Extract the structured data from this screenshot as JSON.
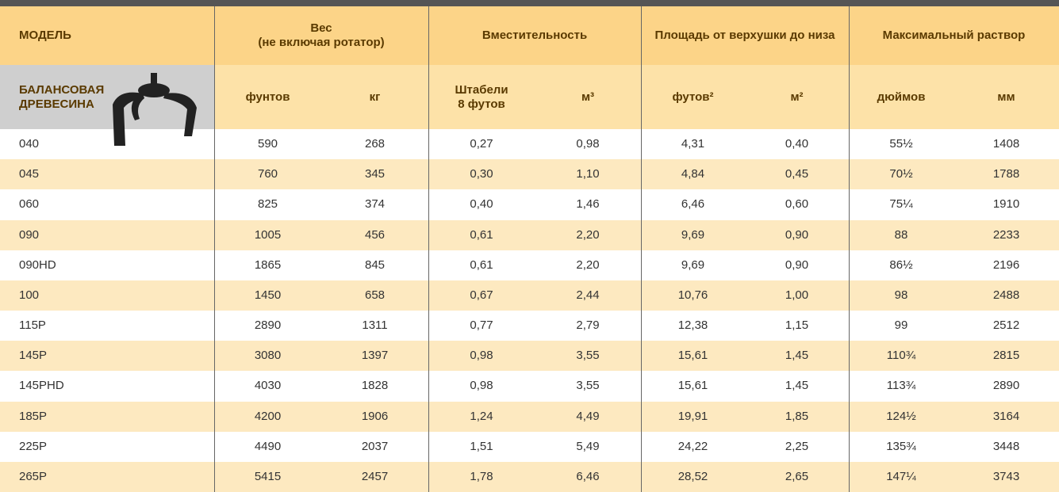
{
  "table": {
    "header": [
      "МОДЕЛЬ",
      "Вес\n(не включая ротатор)",
      "Вместительность",
      "Площадь от верхушки до низа",
      "Максимальный раствор"
    ],
    "subheader": [
      "БАЛАНСОВАЯ\nДРЕВЕСИНА",
      "фунтов",
      "кг",
      "Штабели\n8 футов",
      "м³",
      "футов²",
      "м²",
      "дюймов",
      "мм"
    ],
    "rows": [
      [
        "040",
        "590",
        "268",
        "0,27",
        "0,98",
        "4,31",
        "0,40",
        "55½",
        "1408"
      ],
      [
        "045",
        "760",
        "345",
        "0,30",
        "1,10",
        "4,84",
        "0,45",
        "70½",
        "1788"
      ],
      [
        "060",
        "825",
        "374",
        "0,40",
        "1,46",
        "6,46",
        "0,60",
        "75¼",
        "1910"
      ],
      [
        "090",
        "1005",
        "456",
        "0,61",
        "2,20",
        "9,69",
        "0,90",
        "88",
        "2233"
      ],
      [
        "090HD",
        "1865",
        "845",
        "0,61",
        "2,20",
        "9,69",
        "0,90",
        "86½",
        "2196"
      ],
      [
        "100",
        "1450",
        "658",
        "0,67",
        "2,44",
        "10,76",
        "1,00",
        "98",
        "2488"
      ],
      [
        "115P",
        "2890",
        "1311",
        "0,77",
        "2,79",
        "12,38",
        "1,15",
        "99",
        "2512"
      ],
      [
        "145P",
        "3080",
        "1397",
        "0,98",
        "3,55",
        "15,61",
        "1,45",
        "110¾",
        "2815"
      ],
      [
        "145PHD",
        "4030",
        "1828",
        "0,98",
        "3,55",
        "15,61",
        "1,45",
        "113¾",
        "2890"
      ],
      [
        "185P",
        "4200",
        "1906",
        "1,24",
        "4,49",
        "19,91",
        "1,85",
        "124½",
        "3164"
      ],
      [
        "225P",
        "4490",
        "2037",
        "1,51",
        "5,49",
        "24,22",
        "2,25",
        "135¾",
        "3448"
      ],
      [
        "265P",
        "5415",
        "2457",
        "1,78",
        "6,46",
        "28,52",
        "2,65",
        "147¼",
        "3743"
      ]
    ]
  }
}
